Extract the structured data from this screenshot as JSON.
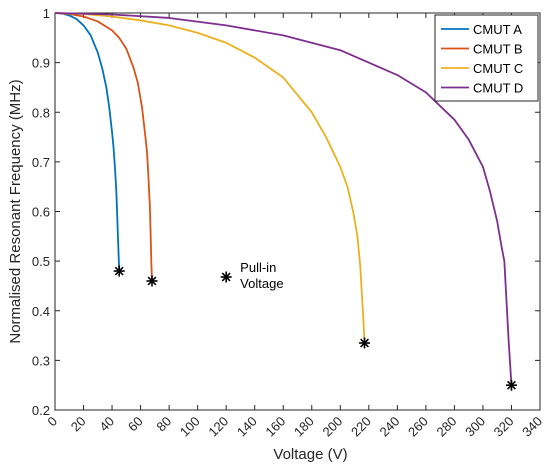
{
  "chart_data": {
    "type": "line",
    "xlabel": "Voltage (V)",
    "ylabel": "Normalised Resonant Frequency (MHz)",
    "xlim": [
      0,
      340
    ],
    "ylim": [
      0.2,
      1
    ],
    "xticks": [
      0,
      20,
      40,
      60,
      80,
      100,
      120,
      140,
      160,
      180,
      200,
      220,
      240,
      260,
      280,
      300,
      320,
      340
    ],
    "yticks": [
      0.2,
      0.3,
      0.4,
      0.5,
      0.6,
      0.7,
      0.8,
      0.9,
      1
    ],
    "grid": false,
    "legend_position": "top-right",
    "series": [
      {
        "name": "CMUT A",
        "color": "#0072BD",
        "x": [
          0,
          5,
          10,
          15,
          20,
          25,
          30,
          33,
          36,
          38,
          40,
          41,
          42,
          43,
          43.5,
          44,
          44.5,
          45
        ],
        "y": [
          1,
          0.999,
          0.995,
          0.988,
          0.975,
          0.955,
          0.92,
          0.89,
          0.85,
          0.81,
          0.76,
          0.73,
          0.69,
          0.64,
          0.6,
          0.56,
          0.52,
          0.48
        ],
        "pull_in": {
          "x": 45,
          "y": 0.48
        }
      },
      {
        "name": "CMUT B",
        "color": "#D95319",
        "x": [
          0,
          10,
          20,
          30,
          40,
          45,
          50,
          55,
          58,
          61,
          63,
          64.5,
          65.5,
          66.5,
          67,
          67.5,
          68
        ],
        "y": [
          1,
          0.998,
          0.993,
          0.983,
          0.965,
          0.95,
          0.928,
          0.89,
          0.86,
          0.81,
          0.76,
          0.72,
          0.67,
          0.61,
          0.56,
          0.5,
          0.46
        ],
        "pull_in": {
          "x": 68,
          "y": 0.46
        }
      },
      {
        "name": "CMUT C",
        "color": "#EDB120",
        "x": [
          0,
          20,
          40,
          60,
          80,
          100,
          120,
          140,
          160,
          180,
          190,
          200,
          205,
          209,
          212,
          214,
          215,
          216,
          217
        ],
        "y": [
          1,
          0.998,
          0.993,
          0.985,
          0.975,
          0.96,
          0.94,
          0.91,
          0.87,
          0.8,
          0.75,
          0.69,
          0.65,
          0.6,
          0.55,
          0.49,
          0.44,
          0.39,
          0.335
        ],
        "pull_in": {
          "x": 217,
          "y": 0.335
        }
      },
      {
        "name": "CMUT D",
        "color": "#7E2F8E",
        "x": [
          0,
          40,
          80,
          120,
          160,
          200,
          240,
          260,
          280,
          290,
          300,
          305,
          310,
          313,
          315,
          316.5,
          318,
          320
        ],
        "y": [
          1,
          0.997,
          0.99,
          0.975,
          0.955,
          0.925,
          0.875,
          0.84,
          0.785,
          0.745,
          0.69,
          0.64,
          0.58,
          0.53,
          0.5,
          0.42,
          0.34,
          0.25
        ],
        "pull_in": {
          "x": 320,
          "y": 0.25
        }
      }
    ],
    "annotations": [
      {
        "label_lines": [
          "Pull-in",
          "Voltage"
        ],
        "marker": "*",
        "x": 120,
        "y": 0.468
      }
    ]
  }
}
